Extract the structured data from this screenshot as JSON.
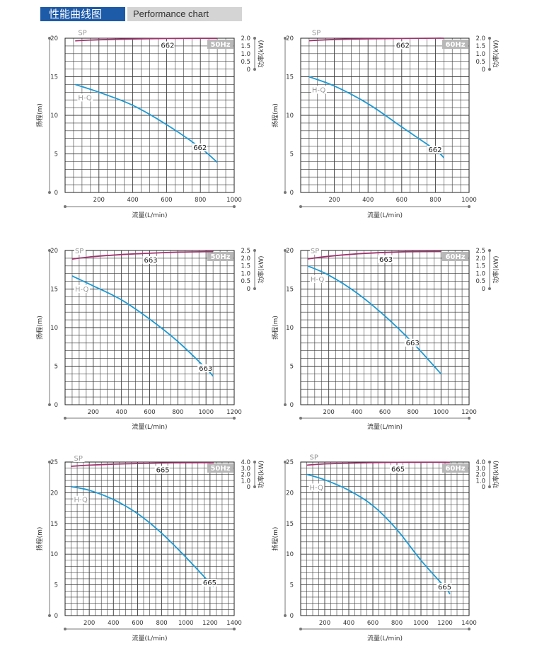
{
  "header": {
    "title_zh": "性能曲线图",
    "title_en": "Performance chart"
  },
  "colors": {
    "hq": "#1b9ad6",
    "sp": "#a0336f",
    "grid": "#3a3a3a",
    "hz_badge": "#b8b8b8"
  },
  "chart_data": [
    {
      "type": "line",
      "xlabel": "流量(L/min)",
      "ylabel": "扬程(m)",
      "y2label": "功率(kW)",
      "frequency": "50Hz",
      "xlim": [
        0,
        1000
      ],
      "xticks": [
        200,
        400,
        600,
        800,
        1000
      ],
      "ylim": [
        0,
        20
      ],
      "yticks": [
        0,
        5,
        10,
        15,
        20
      ],
      "y2lim": [
        0,
        2.0
      ],
      "y2ticks": [
        "0",
        "0.5",
        "1.0",
        "1.5",
        "2.0"
      ],
      "series": [
        {
          "name": "H-Q",
          "model": "662",
          "axis": "left",
          "x": [
            60,
            200,
            400,
            600,
            800,
            900
          ],
          "y": [
            14,
            13,
            11.3,
            8.8,
            5.8,
            3.9
          ]
        },
        {
          "name": "SP",
          "model": "662",
          "axis": "right",
          "x": [
            60,
            200,
            400,
            600,
            800,
            900
          ],
          "y": [
            1.83,
            1.9,
            1.95,
            1.98,
            1.99,
            1.99
          ]
        }
      ]
    },
    {
      "type": "line",
      "xlabel": "流量(L/min)",
      "ylabel": "扬程(m)",
      "y2label": "功率(kW)",
      "frequency": "60Hz",
      "xlim": [
        0,
        1000
      ],
      "xticks": [
        200,
        400,
        600,
        800,
        1000
      ],
      "ylim": [
        0,
        20
      ],
      "yticks": [
        0,
        5,
        10,
        15,
        20
      ],
      "y2lim": [
        0,
        2.0
      ],
      "y2ticks": [
        "0",
        "0.5",
        "1.0",
        "1.5",
        "2.0"
      ],
      "series": [
        {
          "name": "H-Q",
          "model": "662",
          "axis": "left",
          "x": [
            50,
            200,
            400,
            600,
            800,
            850
          ],
          "y": [
            15,
            13.8,
            11.5,
            8.5,
            5.5,
            4.5
          ]
        },
        {
          "name": "SP",
          "model": "662",
          "axis": "right",
          "x": [
            50,
            200,
            400,
            600,
            800,
            850
          ],
          "y": [
            1.84,
            1.92,
            1.96,
            1.98,
            2.0,
            2.0
          ]
        }
      ]
    },
    {
      "type": "line",
      "xlabel": "流量(L/min)",
      "ylabel": "扬程(m)",
      "y2label": "功率(kW)",
      "frequency": "50Hz",
      "xlim": [
        0,
        1200
      ],
      "xticks": [
        200,
        400,
        600,
        800,
        1000,
        1200
      ],
      "ylim": [
        0,
        20
      ],
      "yticks": [
        0,
        5,
        10,
        15,
        20
      ],
      "y2lim": [
        0,
        2.5
      ],
      "y2ticks": [
        "0",
        "0.5",
        "1.0",
        "1.5",
        "2.0",
        "2.5"
      ],
      "series": [
        {
          "name": "H-Q",
          "model": "663",
          "axis": "left",
          "x": [
            50,
            200,
            400,
            600,
            800,
            1000,
            1050
          ],
          "y": [
            16.7,
            15.4,
            13.6,
            11.1,
            8.2,
            4.7,
            3.7
          ]
        },
        {
          "name": "SP",
          "model": "663",
          "axis": "right",
          "x": [
            50,
            200,
            400,
            600,
            800,
            1000,
            1050
          ],
          "y": [
            1.94,
            2.1,
            2.23,
            2.32,
            2.39,
            2.42,
            2.42
          ]
        }
      ]
    },
    {
      "type": "line",
      "xlabel": "流量(L/min)",
      "ylabel": "扬程(m)",
      "y2label": "功率(kW)",
      "frequency": "60Hz",
      "xlim": [
        0,
        1200
      ],
      "xticks": [
        200,
        400,
        600,
        800,
        1000,
        1200
      ],
      "ylim": [
        0,
        20
      ],
      "yticks": [
        0,
        5,
        10,
        15,
        20
      ],
      "y2lim": [
        0,
        2.5
      ],
      "y2ticks": [
        "0",
        "0.5",
        "1.0",
        "1.5",
        "2.0",
        "2.5"
      ],
      "series": [
        {
          "name": "H-Q",
          "model": "663",
          "axis": "left",
          "x": [
            50,
            200,
            400,
            600,
            800,
            1000
          ],
          "y": [
            18,
            16.8,
            14.5,
            11.5,
            8.0,
            4.0
          ]
        },
        {
          "name": "SP",
          "model": "663",
          "axis": "right",
          "x": [
            50,
            200,
            400,
            600,
            800,
            1000
          ],
          "y": [
            1.95,
            2.12,
            2.28,
            2.37,
            2.42,
            2.43
          ]
        }
      ]
    },
    {
      "type": "line",
      "xlabel": "流量(L/min)",
      "ylabel": "扬程(m)",
      "y2label": "功率(kW)",
      "frequency": "50Hz",
      "xlim": [
        0,
        1400
      ],
      "xticks": [
        200,
        400,
        600,
        800,
        1000,
        1200,
        1400
      ],
      "ylim": [
        0,
        25
      ],
      "yticks": [
        0,
        5,
        10,
        15,
        20,
        25
      ],
      "y2lim": [
        0,
        4.0
      ],
      "y2ticks": [
        "0",
        "1.0",
        "2.0",
        "3.0",
        "4.0"
      ],
      "series": [
        {
          "name": "H-Q",
          "model": "665",
          "axis": "left",
          "x": [
            50,
            200,
            400,
            600,
            800,
            1000,
            1200,
            1230
          ],
          "y": [
            21,
            20.4,
            18.9,
            16.6,
            13.4,
            9.5,
            5.3,
            4.7
          ]
        },
        {
          "name": "SP",
          "model": "665",
          "axis": "right",
          "x": [
            50,
            200,
            400,
            600,
            800,
            1000,
            1200,
            1230
          ],
          "y": [
            3.32,
            3.5,
            3.66,
            3.76,
            3.84,
            3.88,
            3.9,
            3.9
          ]
        }
      ]
    },
    {
      "type": "line",
      "xlabel": "流量(L/min)",
      "ylabel": "扬程(m)",
      "y2label": "功率(kW)",
      "frequency": "60Hz",
      "xlim": [
        0,
        1400
      ],
      "xticks": [
        200,
        400,
        600,
        800,
        1000,
        1200,
        1400
      ],
      "ylim": [
        0,
        25
      ],
      "yticks": [
        0,
        5,
        10,
        15,
        20,
        25
      ],
      "y2lim": [
        0,
        4.0
      ],
      "y2ticks": [
        "0",
        "1.0",
        "2.0",
        "3.0",
        "4.0"
      ],
      "series": [
        {
          "name": "H-Q",
          "model": "665",
          "axis": "left",
          "x": [
            50,
            200,
            400,
            600,
            800,
            1000,
            1200,
            1240
          ],
          "y": [
            23,
            22.1,
            20.4,
            17.9,
            14.0,
            9.0,
            4.6,
            3.5
          ]
        },
        {
          "name": "SP",
          "model": "665",
          "axis": "right",
          "x": [
            50,
            200,
            400,
            600,
            800,
            1000,
            1200,
            1240
          ],
          "y": [
            3.5,
            3.7,
            3.82,
            3.9,
            3.95,
            3.97,
            3.97,
            3.96
          ]
        }
      ]
    }
  ]
}
